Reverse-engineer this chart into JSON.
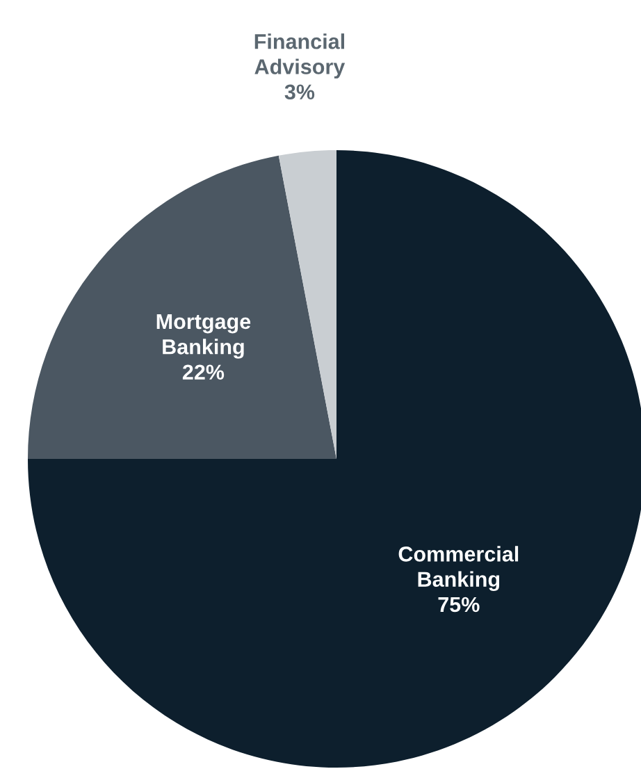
{
  "chart_data": {
    "type": "pie",
    "categories": [
      "Commercial Banking",
      "Mortgage Banking",
      "Financial Advisory"
    ],
    "values": [
      75,
      22,
      3
    ],
    "colors": [
      "#0d1f2d",
      "#4b5762",
      "#c9ced2"
    ],
    "value_labels": [
      "75%",
      "22%",
      "3%"
    ]
  }
}
